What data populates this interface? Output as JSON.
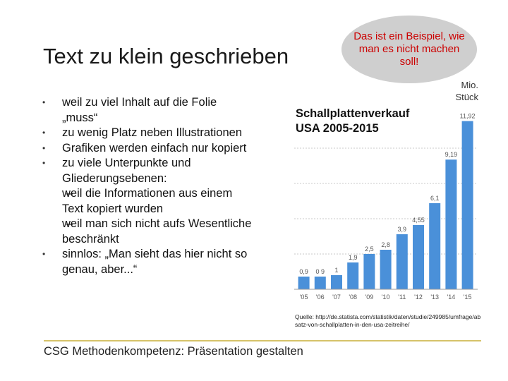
{
  "slide": {
    "title": "Text zu klein geschrieben",
    "callout": "Das ist ein Beispiel, wie man es nicht machen soll!",
    "bullets": [
      {
        "text": "weil zu viel Inhalt auf die Folie „muss“"
      },
      {
        "text": "zu wenig Platz neben Illustrationen"
      },
      {
        "text": "Grafiken werden einfach nur kopiert"
      },
      {
        "text": "zu viele Unterpunkte und Gliederungsebenen:",
        "subitems": [
          "weil die Informationen aus einem Text kopiert wurden",
          "weil man sich nicht aufs Wesentliche beschränkt"
        ]
      },
      {
        "text": "sinnlos: „Man sieht das hier nicht so genau, aber...“"
      }
    ],
    "footer": "CSG Methodenkompetenz: Präsentation gestalten"
  },
  "chart_data": {
    "type": "bar",
    "title": "Schallplattenverkauf USA 2005-2015",
    "ylabel": "Mio. Stück",
    "categories": [
      "'05",
      "'06",
      "'07",
      "'08",
      "'09",
      "'10",
      "'11",
      "'12",
      "'13",
      "'14",
      "'15"
    ],
    "values": [
      0.9,
      0.9,
      1,
      1.9,
      2.5,
      2.8,
      3.9,
      4.55,
      6.1,
      9.19,
      11.92
    ],
    "value_labels": [
      "0,9",
      "0 9",
      "1",
      "1,9",
      "2,5",
      "2,8",
      "3,9",
      "4,55",
      "6,1",
      "9,19",
      "11,92"
    ],
    "ylim": [
      0,
      12
    ],
    "grid": true,
    "bar_color": "#4a90d9",
    "source": "Quelle: http://de.statista.com/statistik/daten/studie/249985/umfrage/absatz-von-schallplatten-in-den-usa-zeitreihe/"
  }
}
